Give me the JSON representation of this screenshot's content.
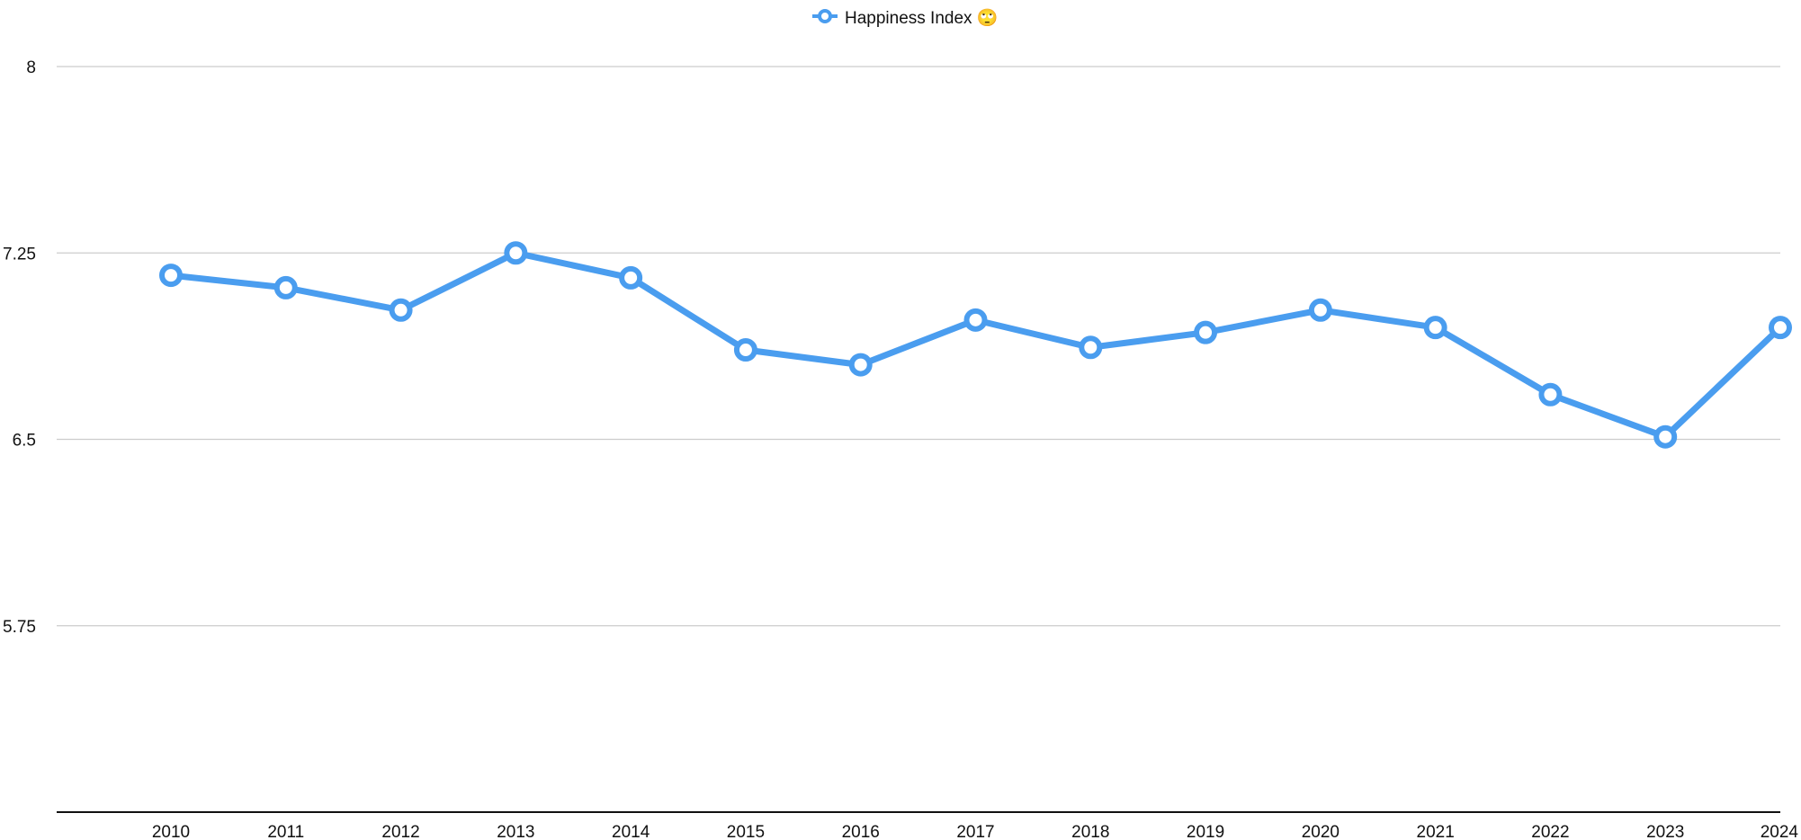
{
  "chart_data": {
    "type": "line",
    "title": "",
    "xlabel": "",
    "ylabel": "",
    "categories": [
      "2010",
      "2011",
      "2012",
      "2013",
      "2014",
      "2015",
      "2016",
      "2017",
      "2018",
      "2019",
      "2020",
      "2021",
      "2022",
      "2023",
      "2024"
    ],
    "series": [
      {
        "name": "Happiness Index 🙄",
        "values": [
          7.16,
          7.11,
          7.02,
          7.25,
          7.15,
          6.86,
          6.8,
          6.98,
          6.87,
          6.93,
          7.02,
          6.95,
          6.68,
          6.51,
          6.95
        ]
      }
    ],
    "ylim": [
      5.0,
      8.0
    ],
    "yticks": [
      "8",
      "7.25",
      "6.5",
      "5.75"
    ],
    "ytick_values": [
      8,
      7.25,
      6.5,
      5.75
    ],
    "grid": true,
    "legend_position": "top-center",
    "colors": {
      "series": "#4a9def",
      "grid": "#cccccc",
      "axis": "#111111"
    }
  }
}
